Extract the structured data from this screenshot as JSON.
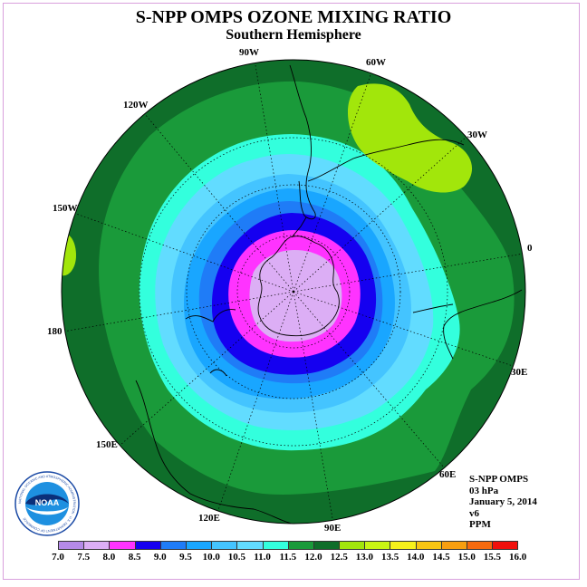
{
  "header": {
    "title": "S-NPP OMPS OZONE MIXING RATIO",
    "subtitle": "Southern Hemisphere"
  },
  "longitude_labels": {
    "w90": "90W",
    "w60": "60W",
    "w30": "30W",
    "w120": "120W",
    "w150": "150W",
    "zero": "0",
    "e180": "180",
    "e30": "30E",
    "e150": "150E",
    "e60": "60E",
    "e120": "120E",
    "e90": "90E"
  },
  "info": {
    "instrument": "S-NPP OMPS",
    "level": "03 hPa",
    "date": "January 5, 2014",
    "version": "v6",
    "units": "PPM"
  },
  "logo": {
    "text": "NOAA",
    "ring_text": "NATIONAL OCEANIC AND ATMOSPHERIC ADMINISTRATION · U.S. DEPARTMENT OF COMMERCE"
  },
  "colorbar": {
    "ticks": [
      "7.0",
      "7.5",
      "8.0",
      "8.5",
      "9.0",
      "9.5",
      "10.0",
      "10.5",
      "11.0",
      "11.5",
      "12.0",
      "12.5",
      "13.0",
      "13.5",
      "14.0",
      "14.5",
      "15.0",
      "15.5",
      "16.0"
    ],
    "colors": [
      "#b58ae8",
      "#dcaef5",
      "#ff33ff",
      "#1500f0",
      "#1f7cf7",
      "#19a6ff",
      "#44c4ff",
      "#62dcff",
      "#33ffdd",
      "#1a9a3a",
      "#0f6e2a",
      "#a2e60b",
      "#c9f514",
      "#f6f11b",
      "#f7c512",
      "#f79e10",
      "#f66a0e",
      "#f1100c",
      "#7d4a2e"
    ]
  },
  "map_data": {
    "projection": "south polar stereographic",
    "level_colors": {
      "ppm_7.5_8.0": "#dcaef5",
      "ppm_8.0_8.5": "#ff33ff",
      "ppm_8.5_9.0": "#1500f0",
      "ppm_9.0_9.5": "#1f7cf7",
      "ppm_9.5_10.0": "#19a6ff",
      "ppm_10.0_10.5": "#44c4ff",
      "ppm_10.5_11.0": "#62dcff",
      "ppm_11.0_11.5": "#33ffdd",
      "ppm_11.5_12.0": "#1a9a3a",
      "ppm_12.0_12.5": "#0f6e2a",
      "ppm_12.5_13.0": "#a2e60b"
    }
  }
}
